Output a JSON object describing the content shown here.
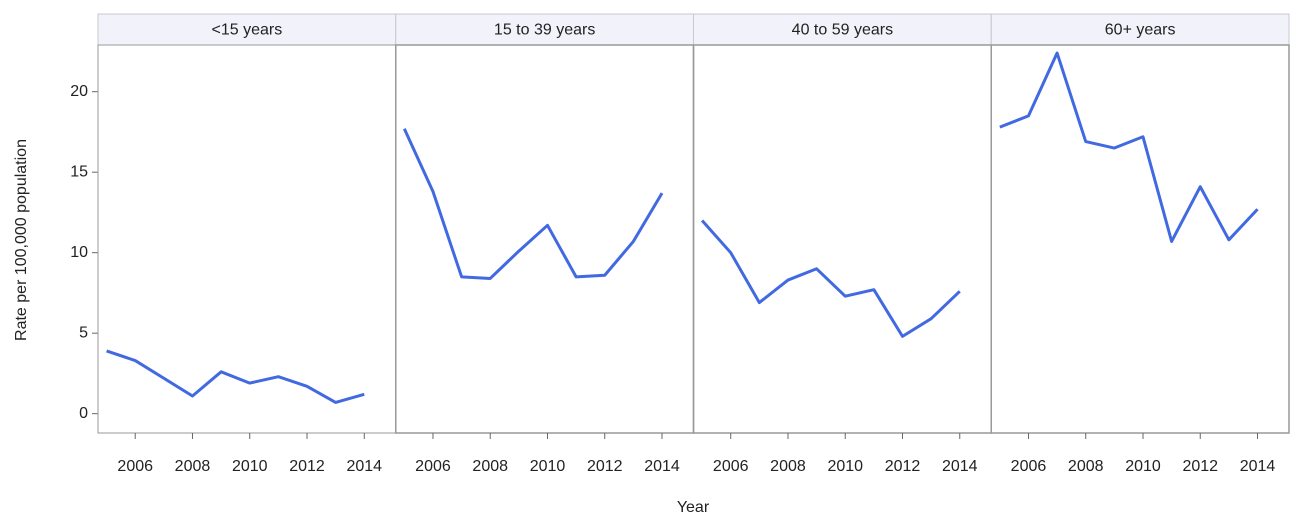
{
  "chart_data": {
    "type": "line",
    "x_label": "Year",
    "y_label": "Rate per 100,000 population",
    "x": [
      2005,
      2006,
      2007,
      2008,
      2009,
      2010,
      2011,
      2012,
      2013,
      2014
    ],
    "xlim": [
      2004.7,
      2015.1
    ],
    "xticks": [
      2006,
      2008,
      2010,
      2012,
      2014
    ],
    "ylim": [
      -1.2,
      22.9
    ],
    "yticks": [
      0,
      5,
      10,
      15,
      20
    ],
    "grid": false,
    "series": [
      {
        "name": "<15 years",
        "color": "#4169e1",
        "values": [
          3.9,
          3.3,
          2.2,
          1.1,
          2.6,
          1.9,
          2.3,
          1.7,
          0.7,
          1.2
        ]
      },
      {
        "name": "15 to 39 years",
        "color": "#4169e1",
        "values": [
          17.7,
          13.8,
          8.5,
          8.4,
          10.1,
          11.7,
          8.5,
          8.6,
          10.7,
          13.7
        ]
      },
      {
        "name": "40 to 59 years",
        "color": "#4169e1",
        "values": [
          12.0,
          10.0,
          6.9,
          8.3,
          9.0,
          7.3,
          7.7,
          4.8,
          5.9,
          7.6
        ]
      },
      {
        "name": "60+ years",
        "color": "#4169e1",
        "values": [
          17.8,
          18.5,
          22.4,
          16.9,
          16.5,
          17.2,
          10.7,
          14.1,
          10.8,
          12.7
        ]
      }
    ]
  }
}
